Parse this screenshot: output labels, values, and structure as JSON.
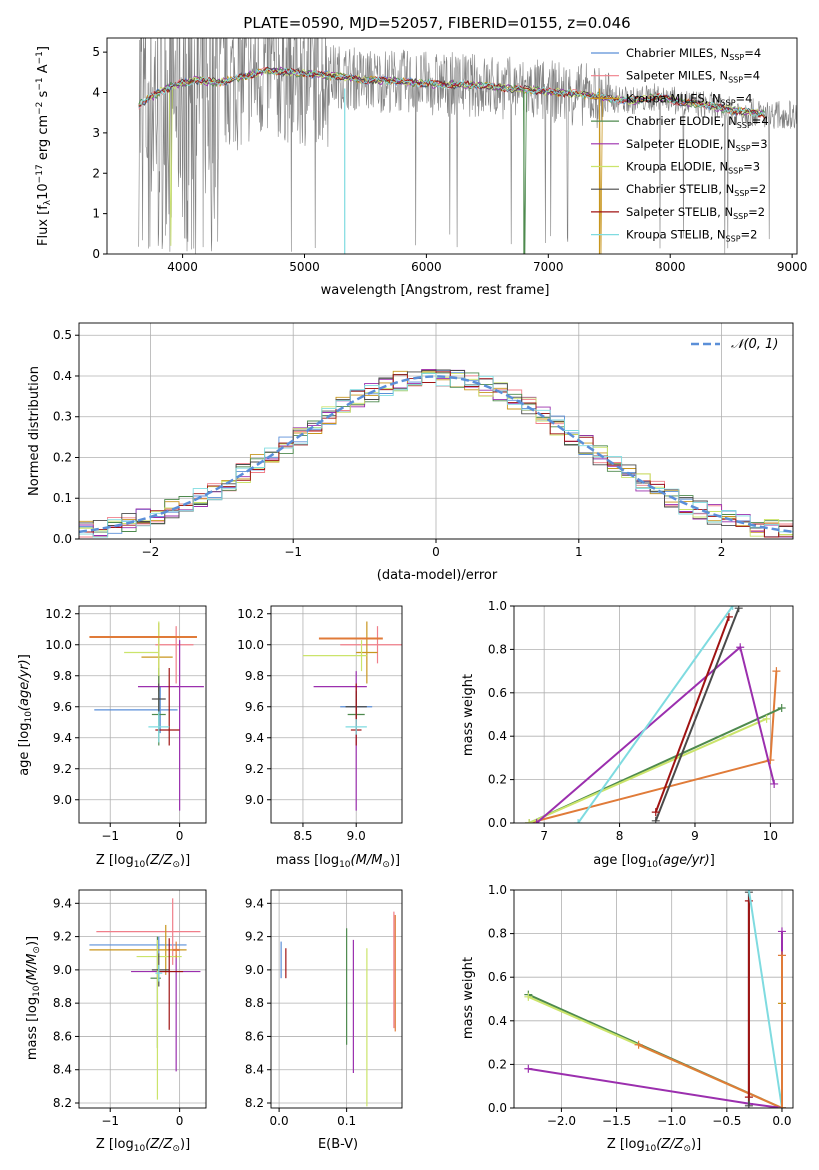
{
  "figure_title": "PLATE=0590, MJD=52057, FIBERID=0155, z=0.046",
  "colors": {
    "series": [
      "#5b8fd8",
      "#f07f8a",
      "#c8961e",
      "#4e8a4e",
      "#9b2fae",
      "#cbe46b",
      "#4a4a4a",
      "#a01313",
      "#7fdbe0"
    ],
    "orange": "#e07b39",
    "grid": "#b0b0b0"
  },
  "legend_spectrum": [
    {
      "pre": "Chabrier MILES, N",
      "sub": "SSP",
      "post": "=4"
    },
    {
      "pre": "Salpeter MILES, N",
      "sub": "SSP",
      "post": "=4"
    },
    {
      "pre": "Kroupa MILES, N",
      "sub": "SSP",
      "post": "=4"
    },
    {
      "pre": "Chabrier ELODIE, N",
      "sub": "SSP",
      "post": "=4"
    },
    {
      "pre": "Salpeter ELODIE, N",
      "sub": "SSP",
      "post": "=3"
    },
    {
      "pre": "Kroupa ELODIE, N",
      "sub": "SSP",
      "post": "=3"
    },
    {
      "pre": "Chabrier STELIB, N",
      "sub": "SSP",
      "post": "=2"
    },
    {
      "pre": "Salpeter STELIB, N",
      "sub": "SSP",
      "post": "=2"
    },
    {
      "pre": "Kroupa STELIB, N",
      "sub": "SSP",
      "post": "=2"
    }
  ],
  "legend_hist": "𝒩(0, 1)",
  "chart_data": [
    {
      "id": "spectrum",
      "type": "line",
      "xlabel": "wavelength [Angstrom, rest frame]",
      "ylabel": "Flux [f_λ 10⁻¹⁷ erg cm⁻² s⁻¹ A⁻¹]",
      "xlim": [
        3380,
        9040
      ],
      "ylim": [
        0,
        5.35
      ],
      "xticks": [
        4000,
        5000,
        6000,
        7000,
        8000,
        9000
      ],
      "yticks": [
        0,
        1,
        2,
        3,
        4,
        5
      ],
      "grid": false,
      "model_flux_profile": {
        "x": [
          3650,
          3800,
          3950,
          4100,
          4300,
          4500,
          4700,
          4900,
          5100,
          5300,
          5500,
          5700,
          5900,
          6100,
          6300,
          6500,
          6700,
          6900,
          7100,
          7300,
          7420,
          7500,
          7700,
          7900,
          8100,
          8300,
          8500,
          8700,
          8780
        ],
        "y": [
          3.7,
          4.0,
          4.2,
          4.3,
          4.25,
          4.4,
          4.55,
          4.5,
          4.45,
          4.4,
          4.3,
          4.3,
          4.25,
          4.2,
          4.2,
          4.15,
          4.1,
          4.05,
          4.0,
          3.95,
          3.9,
          3.85,
          3.8,
          3.9,
          3.75,
          3.7,
          3.55,
          3.5,
          3.45
        ]
      },
      "observed_wavelength_range": [
        3640,
        9040
      ]
    },
    {
      "id": "residual_histogram",
      "type": "line",
      "xlabel": "(data-model)/error",
      "ylabel": "Normed distribution",
      "xlim": [
        -2.5,
        2.5
      ],
      "ylim": [
        0,
        0.53
      ],
      "xticks": [
        -2,
        -1,
        0,
        1,
        2
      ],
      "yticks": [
        0.0,
        0.1,
        0.2,
        0.3,
        0.4,
        0.5
      ],
      "grid": true,
      "bin_width": 0.1,
      "reference_curve": "standard normal, peak 0.399"
    },
    {
      "id": "age_vs_Z",
      "type": "scatter",
      "xlabel": "Z [log₁₀(Z/Z⊙)]",
      "ylabel": "age  [log₁₀(age/yr)]",
      "xlim": [
        -1.45,
        0.38
      ],
      "ylim": [
        8.85,
        10.25
      ],
      "xticks": [
        -1,
        0
      ],
      "yticks": [
        9.0,
        9.2,
        9.4,
        9.6,
        9.8,
        10.0,
        10.2
      ],
      "grid": true,
      "points": [
        {
          "s": 0,
          "x": -0.28,
          "y": 9.58,
          "xerr": [
            0.95,
            0.25
          ],
          "yerr": [
            0.15,
            0.15
          ]
        },
        {
          "s": 1,
          "x": -0.05,
          "y": 10.0,
          "xerr": [
            0.3,
            0.25
          ],
          "yerr": [
            0.25,
            0.12
          ]
        },
        {
          "s": 2,
          "x": -0.3,
          "y": 9.92,
          "xerr": [
            0.25,
            0.2
          ],
          "yerr": [
            0.22,
            0.22
          ]
        },
        {
          "s": 3,
          "x": -0.3,
          "y": 9.55,
          "xerr": [
            0.1,
            0.1
          ],
          "yerr": [
            0.2,
            0.3
          ]
        },
        {
          "s": 4,
          "x": 0.0,
          "y": 9.73,
          "xerr": [
            0.6,
            0.35
          ],
          "yerr": [
            0.8,
            0.3
          ]
        },
        {
          "s": 5,
          "x": -0.3,
          "y": 9.95,
          "xerr": [
            0.5,
            0.0
          ],
          "yerr": [
            0.15,
            0.2
          ]
        },
        {
          "s": 6,
          "x": -0.3,
          "y": 9.65,
          "xerr": [
            0.1,
            0.1
          ],
          "yerr": [
            0.1,
            0.1
          ]
        },
        {
          "s": 7,
          "x": -0.15,
          "y": 9.45,
          "xerr": [
            0.2,
            0.15
          ],
          "yerr": [
            0.1,
            0.4
          ]
        },
        {
          "s": 8,
          "x": -0.3,
          "y": 9.47,
          "xerr": [
            0.15,
            0.15
          ],
          "yerr": [
            0.1,
            0.1
          ]
        },
        {
          "s": "orange",
          "x": -0.3,
          "y": 10.05,
          "xerr": [
            1.0,
            0.55
          ],
          "yerr": [
            0.0,
            0.0
          ]
        }
      ]
    },
    {
      "id": "age_vs_mass",
      "type": "scatter",
      "xlabel": "mass [log₁₀(M/M⊙)]",
      "ylabel": "",
      "xlim": [
        8.2,
        9.43
      ],
      "ylim": [
        8.85,
        10.25
      ],
      "xticks": [
        8.5,
        9.0
      ],
      "yticks": [
        9.0,
        9.2,
        9.4,
        9.6,
        9.8,
        10.0,
        10.2
      ],
      "grid": true,
      "points": [
        {
          "s": 0,
          "x": 9.0,
          "y": 9.6,
          "xerr": [
            0.15,
            0.15
          ],
          "yerr": [
            0.1,
            0.1
          ]
        },
        {
          "s": 1,
          "x": 9.2,
          "y": 10.0,
          "xerr": [
            0.35,
            0.25
          ],
          "yerr": [
            0.12,
            0.12
          ]
        },
        {
          "s": 2,
          "x": 9.1,
          "y": 9.95,
          "xerr": [
            0.1,
            0.1
          ],
          "yerr": [
            0.2,
            0.2
          ]
        },
        {
          "s": 3,
          "x": 9.0,
          "y": 9.55,
          "xerr": [
            0.08,
            0.08
          ],
          "yerr": [
            0.1,
            0.1
          ]
        },
        {
          "s": 4,
          "x": 9.0,
          "y": 9.73,
          "xerr": [
            0.4,
            0.1
          ],
          "yerr": [
            0.8,
            0.1
          ]
        },
        {
          "s": 5,
          "x": 9.05,
          "y": 9.93,
          "xerr": [
            0.55,
            0.05
          ],
          "yerr": [
            0.1,
            0.1
          ]
        },
        {
          "s": 6,
          "x": 9.0,
          "y": 9.6,
          "xerr": [
            0.1,
            0.1
          ],
          "yerr": [
            0.1,
            0.1
          ]
        },
        {
          "s": 7,
          "x": 9.0,
          "y": 9.45,
          "xerr": [
            0.05,
            0.05
          ],
          "yerr": [
            0.1,
            0.3
          ]
        },
        {
          "s": 8,
          "x": 9.0,
          "y": 9.47,
          "xerr": [
            0.1,
            0.1
          ],
          "yerr": [
            0.05,
            0.05
          ]
        },
        {
          "s": "orange",
          "x": 9.1,
          "y": 10.04,
          "xerr": [
            0.45,
            0.15
          ],
          "yerr": [
            0.0,
            0.0
          ]
        }
      ]
    },
    {
      "id": "mass_weight_vs_age",
      "type": "line",
      "xlabel": "age  [log₁₀(age/yr)]",
      "ylabel": "mass weight",
      "xlim": [
        6.6,
        10.3
      ],
      "ylim": [
        0,
        1
      ],
      "xticks": [
        7,
        8,
        9,
        10
      ],
      "yticks": [
        0.0,
        0.2,
        0.4,
        0.6,
        0.8,
        1.0
      ],
      "grid": true,
      "series": [
        {
          "s": "orange",
          "x": [
            6.8,
            10.0,
            10.08
          ],
          "y": [
            0.0,
            0.29,
            0.7
          ]
        },
        {
          "s": 3,
          "x": 6.8,
          "y": 0.0,
          "x2": 10.15,
          "y2": 0.53
        },
        {
          "s": 5,
          "x": 6.8,
          "y": 0.0,
          "x2": 9.95,
          "y2": 0.48
        },
        {
          "s": 4,
          "x": [
            6.9,
            9.6,
            10.05
          ],
          "y": [
            0.0,
            0.81,
            0.18
          ]
        },
        {
          "s": 6,
          "x": [
            8.48,
            9.58
          ],
          "y": [
            0.01,
            0.99
          ]
        },
        {
          "s": 7,
          "x": [
            8.48,
            9.45
          ],
          "y": [
            0.05,
            0.95
          ]
        },
        {
          "s": 8,
          "x": [
            7.45,
            9.5
          ],
          "y": [
            0.0,
            1.0
          ]
        }
      ]
    },
    {
      "id": "mass_vs_Z",
      "type": "scatter",
      "xlabel": "Z [log₁₀(Z/Z⊙)]",
      "ylabel": "mass [log₁₀(M/M⊙)]",
      "xlim": [
        -1.45,
        0.38
      ],
      "ylim": [
        8.17,
        9.48
      ],
      "xticks": [
        -1,
        0
      ],
      "yticks": [
        8.2,
        8.4,
        8.6,
        8.8,
        9.0,
        9.2,
        9.4
      ],
      "grid": true,
      "points": [
        {
          "s": 0,
          "x": -0.3,
          "y": 9.15,
          "xerr": [
            1.0,
            0.4
          ],
          "yerr": [
            0.05,
            0.05
          ]
        },
        {
          "s": 1,
          "x": -0.1,
          "y": 9.23,
          "xerr": [
            1.1,
            0.4
          ],
          "yerr": [
            0.2,
            0.2
          ]
        },
        {
          "s": 2,
          "x": -0.2,
          "y": 9.12,
          "xerr": [
            1.1,
            0.3
          ],
          "yerr": [
            0.15,
            0.15
          ]
        },
        {
          "s": 3,
          "x": -0.32,
          "y": 8.95,
          "xerr": [
            0.1,
            0.05
          ],
          "yerr": [
            0.42,
            0.25
          ]
        },
        {
          "s": 4,
          "x": -0.05,
          "y": 8.99,
          "xerr": [
            0.65,
            0.35
          ],
          "yerr": [
            0.6,
            0.1
          ]
        },
        {
          "s": 5,
          "x": -0.32,
          "y": 9.08,
          "xerr": [
            0.3,
            0.35
          ],
          "yerr": [
            0.86,
            0.1
          ]
        },
        {
          "s": 6,
          "x": -0.3,
          "y": 9.0,
          "xerr": [
            0.1,
            0.15
          ],
          "yerr": [
            0.1,
            0.1
          ]
        },
        {
          "s": 7,
          "x": -0.15,
          "y": 8.99,
          "xerr": [
            0.15,
            0.2
          ],
          "yerr": [
            0.35,
            0.2
          ]
        },
        {
          "s": 8,
          "x": -0.3,
          "y": 8.98,
          "xerr": [
            0.05,
            0.05
          ],
          "yerr": [
            0.05,
            0.05
          ]
        },
        {
          "s": "orange",
          "x": -0.05,
          "y": 9.12,
          "xerr": [
            0.05,
            0.05
          ],
          "yerr": [
            0.05,
            0.05
          ]
        }
      ]
    },
    {
      "id": "mass_vs_EBV",
      "type": "scatter",
      "xlabel": "E(B-V)",
      "ylabel": "",
      "xlim": [
        -0.012,
        0.182
      ],
      "ylim": [
        8.17,
        9.48
      ],
      "xticks": [
        0.0,
        0.1
      ],
      "yticks": [
        8.2,
        8.4,
        8.6,
        8.8,
        9.0,
        9.2,
        9.4
      ],
      "grid": true,
      "points": [
        {
          "s": 0,
          "x": 0.003,
          "y": 9.05,
          "yerr": [
            0.1,
            0.12
          ]
        },
        {
          "s": 7,
          "x": 0.01,
          "y": 9.03,
          "yerr": [
            0.08,
            0.1
          ]
        },
        {
          "s": 3,
          "x": 0.1,
          "y": 8.9,
          "yerr": [
            0.35,
            0.35
          ]
        },
        {
          "s": 4,
          "x": 0.11,
          "y": 8.98,
          "yerr": [
            0.6,
            0.2
          ]
        },
        {
          "s": 5,
          "x": 0.13,
          "y": 8.68,
          "yerr": [
            0.5,
            0.45
          ]
        },
        {
          "s": 1,
          "x": 0.17,
          "y": 9.0,
          "yerr": [
            0.35,
            0.35
          ]
        },
        {
          "s": "orange",
          "x": 0.172,
          "y": 8.98,
          "yerr": [
            0.35,
            0.35
          ]
        }
      ]
    },
    {
      "id": "mass_weight_vs_Z",
      "type": "line",
      "xlabel": "Z [log₁₀(Z/Z⊙)]",
      "ylabel": "mass weight",
      "xlim": [
        -2.43,
        0.1
      ],
      "ylim": [
        0,
        1
      ],
      "xticks": [
        -2.0,
        -1.5,
        -1.0,
        -0.5,
        0.0
      ],
      "yticks": [
        0.0,
        0.2,
        0.4,
        0.6,
        0.8,
        1.0
      ],
      "grid": true,
      "series": [
        {
          "s": 3,
          "x": [
            -2.3,
            0.0
          ],
          "y": [
            0.52,
            0.0
          ]
        },
        {
          "s": 5,
          "x": [
            -2.3,
            0.0
          ],
          "y": [
            0.51,
            0.0
          ]
        },
        {
          "s": "orange",
          "x": [
            -1.3,
            0.0
          ],
          "y": [
            0.29,
            0.0
          ]
        },
        {
          "s": 4,
          "x": [
            -2.3,
            -0.3,
            0.0,
            0.0
          ],
          "y": [
            0.18,
            0.02,
            0.0,
            0.81
          ]
        },
        {
          "s": 6,
          "x": [
            -0.3,
            -0.3
          ],
          "y": [
            0.01,
            0.99
          ]
        },
        {
          "s": 7,
          "x": [
            -0.3,
            -0.3
          ],
          "y": [
            0.05,
            0.95
          ]
        },
        {
          "s": 8,
          "x": [
            -0.3,
            0.0
          ],
          "y": [
            1.0,
            0.0
          ]
        },
        {
          "s": 2,
          "x": [
            0.0,
            0.0
          ],
          "y": [
            0.0,
            0.48
          ]
        },
        {
          "s": "orange",
          "x": [
            0.0,
            0.0
          ],
          "y": [
            0.0,
            0.7
          ]
        }
      ]
    }
  ]
}
